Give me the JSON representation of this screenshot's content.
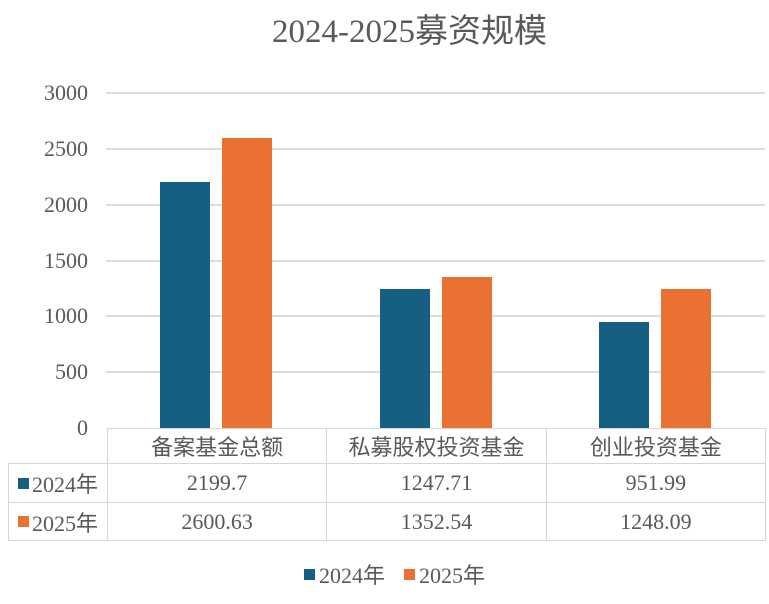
{
  "chart_data": {
    "type": "bar",
    "title": "2024-2025募资规模",
    "categories": [
      "备案基金总额",
      "私募股权投资基金",
      "创业投资基金"
    ],
    "series": [
      {
        "name": "2024年",
        "color": "#156082",
        "values": [
          2199.7,
          1247.71,
          951.99
        ],
        "labels": [
          "2199.7",
          "1247.71",
          "951.99"
        ]
      },
      {
        "name": "2025年",
        "color": "#E97132",
        "values": [
          2600.63,
          1352.54,
          1248.09
        ],
        "labels": [
          "2600.63",
          "1352.54",
          "1248.09"
        ]
      }
    ],
    "y_axis": {
      "min": 0,
      "max": 3000,
      "step": 500,
      "tick_labels": [
        "0",
        "500",
        "1000",
        "1500",
        "2000",
        "2500",
        "3000"
      ]
    },
    "grid": true,
    "legend_position": "bottom",
    "legend": [
      "2024年",
      "2025年"
    ],
    "colors": {
      "series_2024": "#156082",
      "series_2025": "#E97132",
      "gridline": "#DCDCDC",
      "table_border": "#D6D6D6",
      "text": "#595959"
    }
  }
}
